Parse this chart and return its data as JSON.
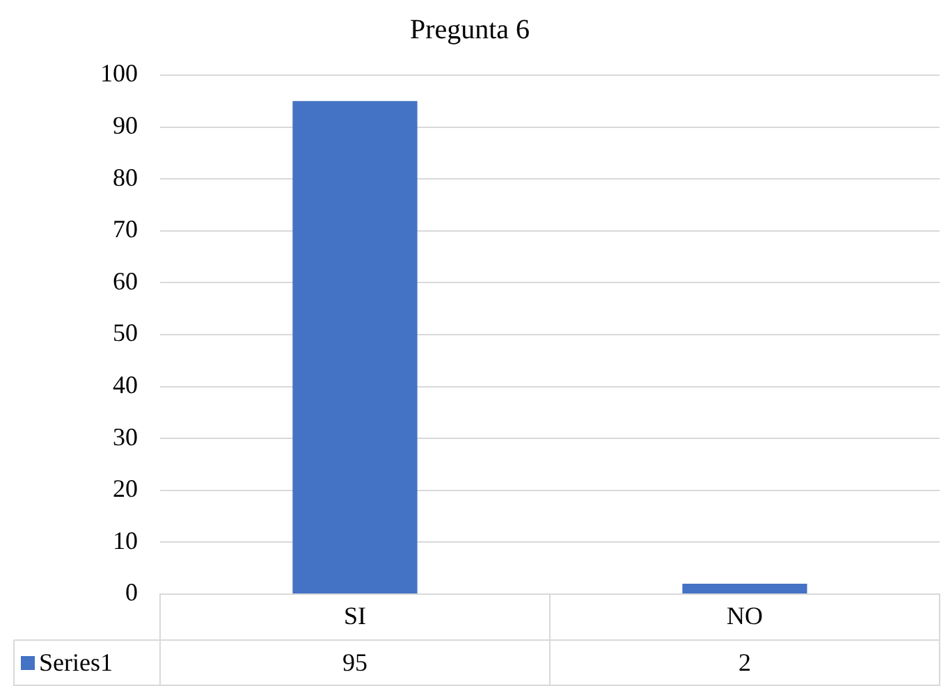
{
  "chart_data": {
    "type": "bar",
    "title": "Pregunta 6",
    "categories": [
      "SI",
      "NO"
    ],
    "series": [
      {
        "name": "Series1",
        "color": "#4472c4",
        "values": [
          95,
          2
        ]
      }
    ],
    "ylim": [
      0,
      100
    ],
    "yticks": [
      0,
      10,
      20,
      30,
      40,
      50,
      60,
      70,
      80,
      90,
      100
    ],
    "grid": "y",
    "legend": "bottom",
    "data_labels": true
  }
}
